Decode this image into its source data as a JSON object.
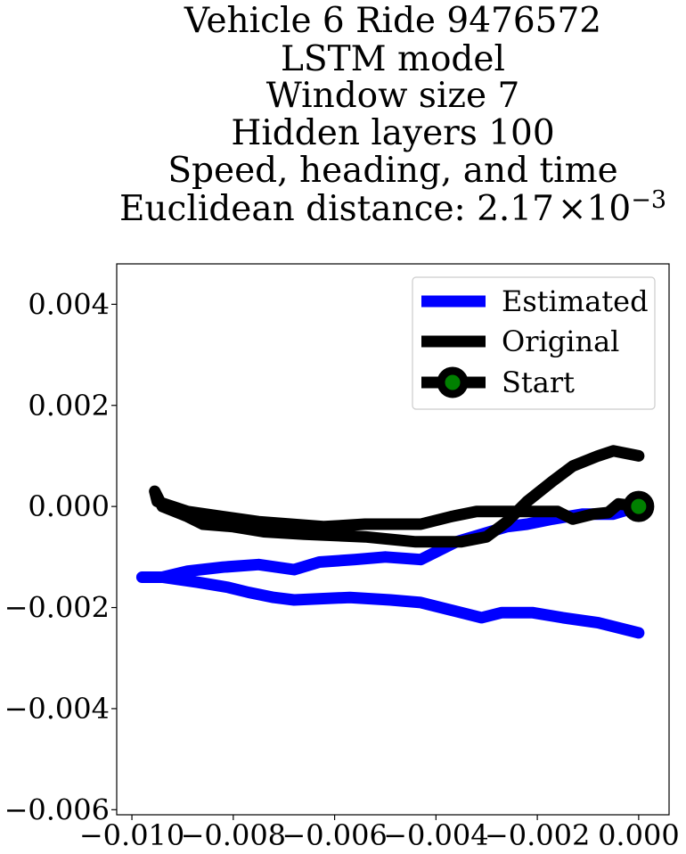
{
  "chart_data": {
    "type": "line",
    "title_lines": [
      "Vehicle 6 Ride 9476572",
      "LSTM model",
      "Window size 7",
      "Hidden layers 100",
      "Speed, heading, and time"
    ],
    "title_metric": {
      "prefix": "Euclidean distance: 2.17",
      "times": "×",
      "base": "10",
      "exponent": "−3"
    },
    "xlim": [
      -0.0103,
      0.0006
    ],
    "ylim": [
      -0.0061,
      0.0048
    ],
    "x_ticks": [
      -0.01,
      -0.008,
      -0.006,
      -0.004,
      -0.002,
      0.0
    ],
    "x_tick_labels": [
      "−0.010",
      "−0.008",
      "−0.006",
      "−0.004",
      "−0.002",
      "0.000"
    ],
    "y_ticks": [
      0.004,
      0.002,
      0.0,
      -0.002,
      -0.004,
      -0.006
    ],
    "y_tick_labels": [
      "0.004",
      "0.002",
      "0.000",
      "−0.002",
      "−0.004",
      "−0.006"
    ],
    "grid": false,
    "legend_position": "top-right",
    "series": [
      {
        "name": "Estimated",
        "color": "#0000ff",
        "points": [
          [
            0.0,
            0.0
          ],
          [
            -0.0005,
            -0.00015
          ],
          [
            -0.0011,
            -0.00015
          ],
          [
            -0.0017,
            -0.00025
          ],
          [
            -0.0022,
            -0.00035
          ],
          [
            -0.0026,
            -0.0004
          ],
          [
            -0.0031,
            -0.00055
          ],
          [
            -0.0036,
            -0.0007
          ],
          [
            -0.0043,
            -0.00105
          ],
          [
            -0.005,
            -0.001
          ],
          [
            -0.0056,
            -0.00105
          ],
          [
            -0.0063,
            -0.0011
          ],
          [
            -0.0068,
            -0.00125
          ],
          [
            -0.0075,
            -0.00115
          ],
          [
            -0.0082,
            -0.0012
          ],
          [
            -0.0089,
            -0.00128
          ],
          [
            -0.0094,
            -0.0014
          ],
          [
            -0.0098,
            -0.0014
          ],
          [
            -0.0094,
            -0.0014
          ],
          [
            -0.0087,
            -0.0015
          ],
          [
            -0.0081,
            -0.0016
          ],
          [
            -0.0077,
            -0.0017
          ],
          [
            -0.0072,
            -0.0018
          ],
          [
            -0.0068,
            -0.00185
          ],
          [
            -0.0057,
            -0.0018
          ],
          [
            -0.0049,
            -0.00185
          ],
          [
            -0.0043,
            -0.0019
          ],
          [
            -0.0037,
            -0.00205
          ],
          [
            -0.0031,
            -0.0022
          ],
          [
            -0.0027,
            -0.0021
          ],
          [
            -0.0021,
            -0.0021
          ],
          [
            -0.0015,
            -0.0022
          ],
          [
            -0.0008,
            -0.0023
          ],
          [
            0.0,
            -0.0025
          ]
        ]
      },
      {
        "name": "Original",
        "color": "#000000",
        "points": [
          [
            0.0,
            0.0
          ],
          [
            -0.0004,
            5e-05
          ],
          [
            -0.0006,
            -0.00012
          ],
          [
            -0.0009,
            -0.00015
          ],
          [
            -0.0013,
            -0.00025
          ],
          [
            -0.0016,
            -0.0001
          ],
          [
            -0.0026,
            -0.0001
          ],
          [
            -0.0032,
            -0.0001
          ],
          [
            -0.0037,
            -0.0002
          ],
          [
            -0.0043,
            -0.00035
          ],
          [
            -0.0054,
            -0.00035
          ],
          [
            -0.0062,
            -0.0004
          ],
          [
            -0.0075,
            -0.0003
          ],
          [
            -0.0082,
            -0.0002
          ],
          [
            -0.0089,
            -0.0001
          ],
          [
            -0.0095,
            0.0001
          ],
          [
            -0.00955,
            0.0003
          ],
          [
            -0.0094,
            0.0
          ],
          [
            -0.0089,
            -0.0002
          ],
          [
            -0.0086,
            -0.00035
          ],
          [
            -0.008,
            -0.0004
          ],
          [
            -0.0074,
            -0.0005
          ],
          [
            -0.0066,
            -0.00055
          ],
          [
            -0.0054,
            -0.0006
          ],
          [
            -0.0044,
            -0.0007
          ],
          [
            -0.0035,
            -0.0007
          ],
          [
            -0.003,
            -0.0006
          ],
          [
            -0.0026,
            -0.0003
          ],
          [
            -0.0022,
            0.0001
          ],
          [
            -0.0017,
            0.0005
          ],
          [
            -0.0013,
            0.0008
          ],
          [
            -0.0008,
            0.001
          ],
          [
            -0.0005,
            0.0011
          ],
          [
            0.0,
            0.001
          ]
        ]
      }
    ],
    "start_marker": {
      "name": "Start",
      "x": 0.0,
      "y": 0.0,
      "edge_color": "#000000",
      "face_color": "#008000"
    }
  }
}
